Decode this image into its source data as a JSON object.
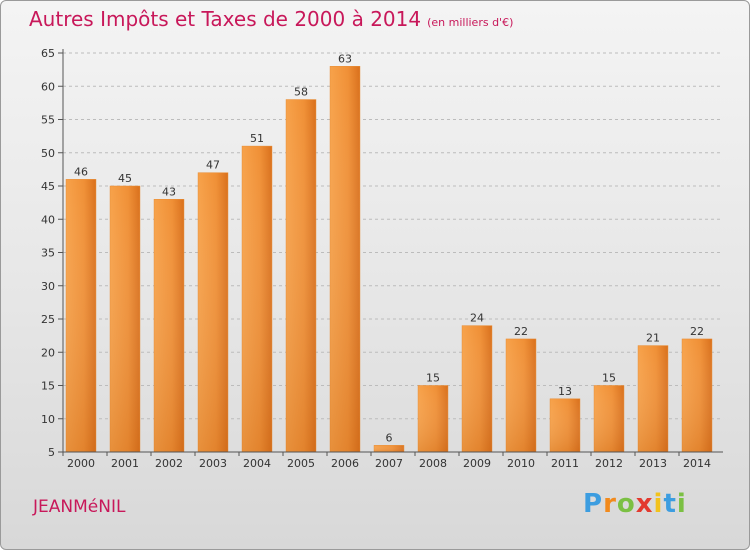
{
  "header": {
    "title": "Autres Impôts et Taxes de 2000 à 2014",
    "subtitle": "(en milliers d'€)"
  },
  "footer": {
    "commune": "JEANMéNIL",
    "logo": "Proxiti"
  },
  "colors": {
    "bar_light": "#f7a24a",
    "bar_dark": "#d9701c",
    "title": "#c8185a",
    "grid": "#bcbcbc"
  },
  "chart_data": {
    "type": "bar",
    "title": "Autres Impôts et Taxes de 2000 à 2014",
    "subtitle": "(en milliers d'€)",
    "xlabel": "",
    "ylabel": "",
    "categories": [
      "2000",
      "2001",
      "2002",
      "2003",
      "2004",
      "2005",
      "2006",
      "2007",
      "2008",
      "2009",
      "2010",
      "2011",
      "2012",
      "2013",
      "2014"
    ],
    "values": [
      46,
      45,
      43,
      47,
      51,
      58,
      63,
      6,
      15,
      24,
      22,
      13,
      15,
      21,
      22
    ],
    "yticks": [
      5,
      10,
      15,
      20,
      25,
      30,
      35,
      40,
      45,
      50,
      55,
      60,
      65
    ],
    "ylim": [
      5,
      65
    ],
    "grid": "horizontal dashed",
    "legend": "none"
  }
}
